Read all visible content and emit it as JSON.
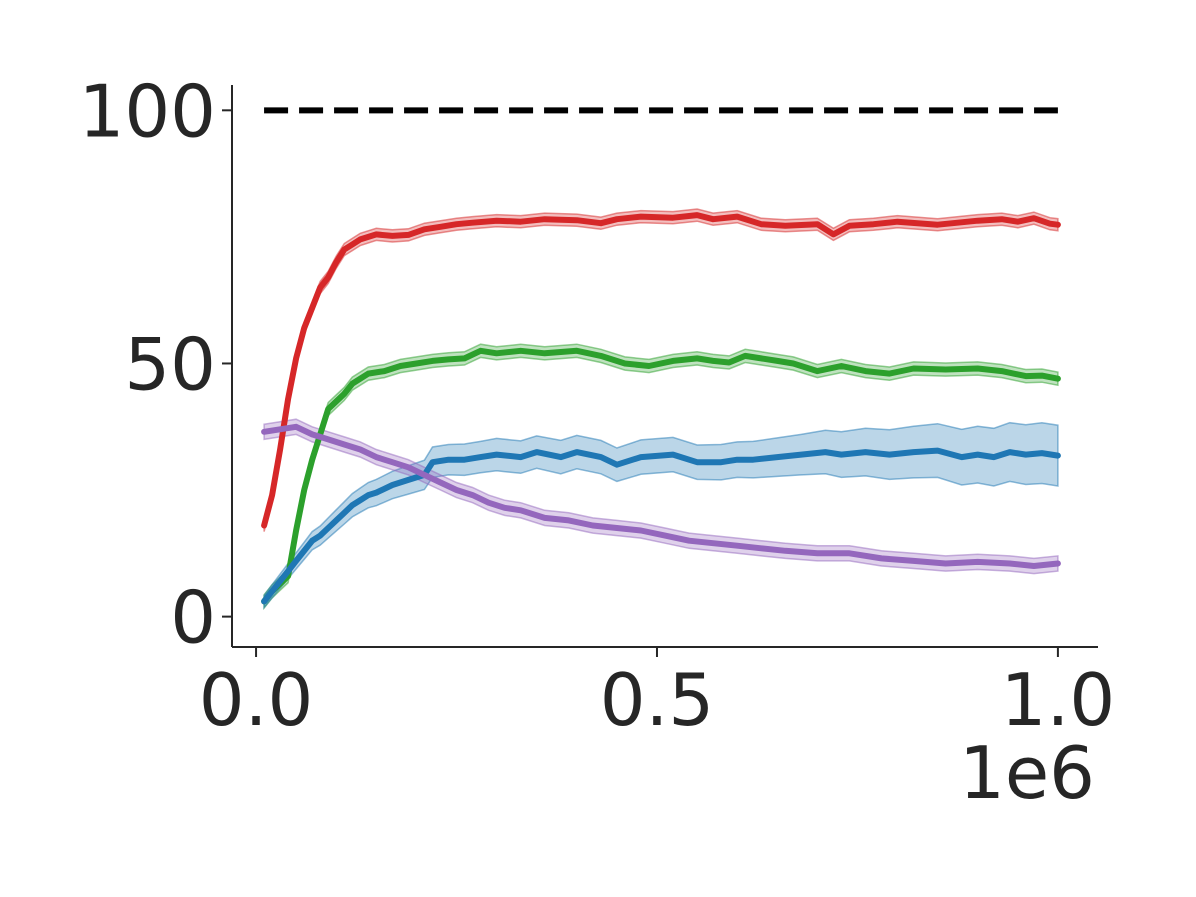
{
  "chart_data": {
    "type": "line",
    "title": "",
    "xlabel": "",
    "ylabel": "",
    "x_offset_label": "1e6",
    "xlim": [
      -0.03,
      1.05
    ],
    "ylim": [
      -6,
      105
    ],
    "x_ticks": [
      0.0,
      0.5,
      1.0
    ],
    "x_tick_labels": [
      "0.0",
      "0.5",
      "1.0"
    ],
    "y_ticks": [
      0,
      50,
      100
    ],
    "y_tick_labels": [
      "0",
      "50",
      "100"
    ],
    "grid": false,
    "reference_line": {
      "y": 100,
      "x_range": [
        0.01,
        1.0
      ],
      "color": "#000000",
      "style": "dashed"
    },
    "series": [
      {
        "color": "#d62728",
        "x": [
          0.01,
          0.02,
          0.03,
          0.04,
          0.05,
          0.06,
          0.07,
          0.08,
          0.09,
          0.1,
          0.11,
          0.12,
          0.13,
          0.15,
          0.17,
          0.19,
          0.21,
          0.23,
          0.25,
          0.27,
          0.3,
          0.33,
          0.36,
          0.4,
          0.43,
          0.45,
          0.48,
          0.52,
          0.55,
          0.57,
          0.6,
          0.63,
          0.66,
          0.7,
          0.72,
          0.74,
          0.77,
          0.8,
          0.85,
          0.9,
          0.93,
          0.95,
          0.97,
          0.99,
          1.0
        ],
        "y": [
          18,
          24,
          33,
          43,
          51,
          57,
          61,
          65,
          67,
          70,
          72.5,
          73.5,
          74.5,
          75.5,
          75.2,
          75.4,
          76.5,
          77,
          77.5,
          77.8,
          78.2,
          78,
          78.5,
          78.3,
          77.7,
          78.5,
          79,
          78.8,
          79.3,
          78.5,
          79,
          77.5,
          77.2,
          77.5,
          75.5,
          77.2,
          77.5,
          78,
          77.4,
          78.2,
          78.5,
          78,
          78.7,
          77.6,
          77.4
        ],
        "band": [
          1.2,
          1.2,
          1.2,
          1.2,
          1.2,
          1.2,
          1.2,
          1.2,
          1.2,
          1.2,
          1.2,
          1.2,
          1.2,
          1.2,
          1.2,
          1.2,
          1.2,
          1.2,
          1.2,
          1.2,
          1.2,
          1.2,
          1.2,
          1.2,
          1.2,
          1.2,
          1.2,
          1.2,
          1.2,
          1.2,
          1.2,
          1.2,
          1.2,
          1.2,
          1.2,
          1.2,
          1.2,
          1.2,
          1.2,
          1.2,
          1.2,
          1.2,
          1.2,
          1.2,
          1.2
        ]
      },
      {
        "color": "#2ca02c",
        "x": [
          0.01,
          0.02,
          0.03,
          0.04,
          0.05,
          0.06,
          0.07,
          0.08,
          0.09,
          0.1,
          0.11,
          0.12,
          0.14,
          0.16,
          0.18,
          0.2,
          0.22,
          0.24,
          0.26,
          0.28,
          0.3,
          0.33,
          0.36,
          0.4,
          0.43,
          0.46,
          0.49,
          0.52,
          0.55,
          0.57,
          0.59,
          0.61,
          0.63,
          0.65,
          0.67,
          0.7,
          0.73,
          0.76,
          0.79,
          0.82,
          0.86,
          0.9,
          0.93,
          0.96,
          0.98,
          1.0
        ],
        "y": [
          3,
          5,
          6.5,
          8,
          17,
          25,
          31,
          36,
          41,
          42.5,
          44,
          46,
          48,
          48.5,
          49.5,
          50,
          50.5,
          50.8,
          51,
          52.5,
          52,
          52.5,
          52,
          52.5,
          51.5,
          50,
          49.5,
          50.5,
          51,
          50.5,
          50.2,
          51.5,
          51,
          50.5,
          50,
          48.5,
          49.5,
          48.5,
          48,
          49,
          48.8,
          49,
          48.5,
          47.5,
          47.6,
          47
        ],
        "band": [
          1.3,
          1.3,
          1.3,
          1.3,
          1.3,
          1.3,
          1.3,
          1.3,
          1.3,
          1.3,
          1.3,
          1.3,
          1.3,
          1.3,
          1.3,
          1.3,
          1.3,
          1.3,
          1.3,
          1.3,
          1.3,
          1.3,
          1.3,
          1.3,
          1.3,
          1.3,
          1.3,
          1.3,
          1.3,
          1.3,
          1.3,
          1.3,
          1.3,
          1.3,
          1.3,
          1.3,
          1.3,
          1.3,
          1.3,
          1.3,
          1.3,
          1.3,
          1.3,
          1.3,
          1.3,
          1.3
        ]
      },
      {
        "color": "#1f77b4",
        "x": [
          0.01,
          0.02,
          0.03,
          0.04,
          0.05,
          0.06,
          0.07,
          0.08,
          0.09,
          0.1,
          0.11,
          0.12,
          0.13,
          0.14,
          0.15,
          0.17,
          0.19,
          0.21,
          0.22,
          0.24,
          0.26,
          0.28,
          0.3,
          0.33,
          0.35,
          0.38,
          0.4,
          0.43,
          0.45,
          0.48,
          0.52,
          0.55,
          0.58,
          0.6,
          0.62,
          0.65,
          0.68,
          0.71,
          0.73,
          0.76,
          0.79,
          0.82,
          0.85,
          0.88,
          0.9,
          0.92,
          0.94,
          0.96,
          0.98,
          1.0
        ],
        "y": [
          3,
          5,
          7,
          9,
          11,
          13,
          15,
          16,
          17.5,
          19,
          20.5,
          22,
          23,
          24,
          24.5,
          26,
          27,
          28,
          30.5,
          31,
          31,
          31.5,
          32,
          31.5,
          32.5,
          31.5,
          32.5,
          31.5,
          30,
          31.5,
          32,
          30.5,
          30.5,
          31,
          31,
          31.5,
          32,
          32.5,
          32,
          32.5,
          32,
          32.5,
          32.8,
          31.5,
          32,
          31.5,
          32.5,
          32,
          32.3,
          31.8
        ],
        "band": [
          1.2,
          1.3,
          1.4,
          1.5,
          1.6,
          1.7,
          1.8,
          1.9,
          2.0,
          2.1,
          2.2,
          2.3,
          2.4,
          2.5,
          2.6,
          2.7,
          2.8,
          2.9,
          3.0,
          3.0,
          3.1,
          3.1,
          3.2,
          3.2,
          3.2,
          3.3,
          3.3,
          3.3,
          3.3,
          3.4,
          3.4,
          3.4,
          3.5,
          3.5,
          3.6,
          3.8,
          4.0,
          4.3,
          4.5,
          4.7,
          4.9,
          5.1,
          5.3,
          5.5,
          5.6,
          5.7,
          5.8,
          5.9,
          6.0,
          6.0
        ]
      },
      {
        "color": "#9467bd",
        "x": [
          0.01,
          0.03,
          0.05,
          0.07,
          0.09,
          0.11,
          0.13,
          0.15,
          0.17,
          0.19,
          0.21,
          0.23,
          0.25,
          0.27,
          0.29,
          0.31,
          0.33,
          0.36,
          0.39,
          0.42,
          0.45,
          0.48,
          0.51,
          0.54,
          0.57,
          0.6,
          0.63,
          0.66,
          0.7,
          0.74,
          0.78,
          0.82,
          0.86,
          0.9,
          0.94,
          0.97,
          1.0
        ],
        "y": [
          36.5,
          37,
          37.5,
          36,
          35,
          34,
          33,
          31.5,
          30.5,
          29.5,
          28,
          26.5,
          25,
          24,
          22.5,
          21.5,
          21,
          19.5,
          19,
          18,
          17.5,
          17,
          16,
          15,
          14.5,
          14,
          13.5,
          13,
          12.5,
          12.5,
          11.5,
          11,
          10.5,
          10.8,
          10.5,
          10,
          10.5
        ],
        "band": [
          1.5,
          1.5,
          1.5,
          1.5,
          1.5,
          1.5,
          1.5,
          1.5,
          1.5,
          1.5,
          1.5,
          1.5,
          1.5,
          1.5,
          1.5,
          1.5,
          1.5,
          1.5,
          1.5,
          1.5,
          1.5,
          1.5,
          1.5,
          1.5,
          1.5,
          1.5,
          1.5,
          1.5,
          1.5,
          1.5,
          1.5,
          1.5,
          1.5,
          1.5,
          1.5,
          1.5,
          1.5
        ]
      }
    ]
  }
}
